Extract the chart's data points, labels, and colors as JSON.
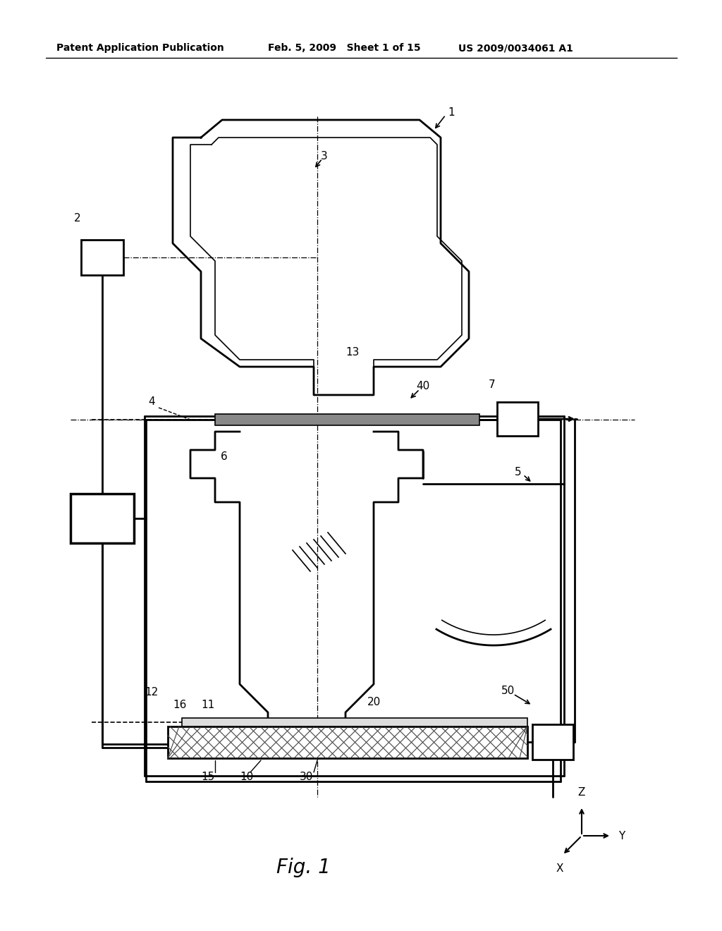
{
  "bg_color": "#ffffff",
  "line_color": "#000000",
  "header_left": "Patent Application Publication",
  "header_mid": "Feb. 5, 2009   Sheet 1 of 15",
  "header_right": "US 2009/0034061 A1",
  "fig_label": "Fig. 1"
}
